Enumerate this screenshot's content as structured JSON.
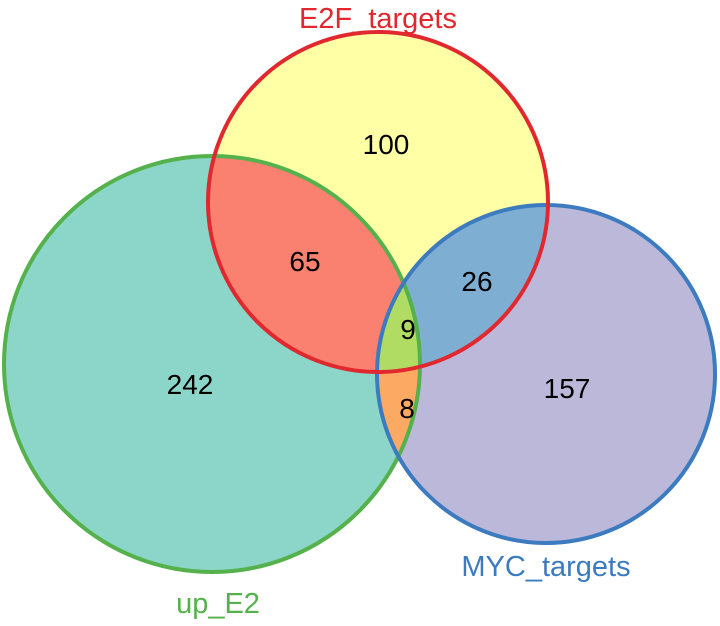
{
  "diagram": {
    "type": "venn-3",
    "sets": {
      "e2f": {
        "label": "E2F_targets",
        "color": "#e0282e",
        "fill": "#ffffa6"
      },
      "up": {
        "label": "up_E2",
        "color": "#55b14b",
        "fill": "#8bd6c8"
      },
      "myc": {
        "label": "MYC_targets",
        "color": "#3c7bbf",
        "fill": "#bcb8da"
      }
    },
    "regions": {
      "e2f_only": "100",
      "up_only": "242",
      "myc_only": "157",
      "e2f_up": "65",
      "e2f_myc": "26",
      "up_myc": "8",
      "all_three": "9"
    },
    "region_fills": {
      "e2f_up": "#fa8070",
      "e2f_myc": "#7faed3",
      "up_myc": "#fca964",
      "all_three": "#b1dc63"
    }
  }
}
